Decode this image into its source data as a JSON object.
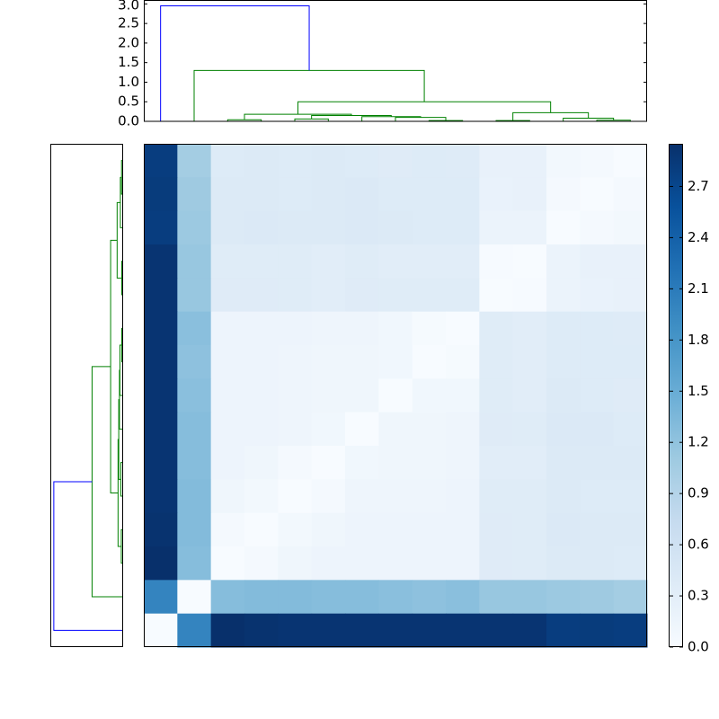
{
  "chart_data": {
    "type": "clustered-heatmap",
    "matrix": [
      [
        2.8,
        1.05,
        0.38,
        0.4,
        0.38,
        0.4,
        0.38,
        0.36,
        0.38,
        0.37,
        0.22,
        0.22,
        0.08,
        0.04,
        0.0
      ],
      [
        2.82,
        1.1,
        0.4,
        0.4,
        0.38,
        0.4,
        0.42,
        0.38,
        0.38,
        0.38,
        0.2,
        0.22,
        0.05,
        0.0,
        0.04
      ],
      [
        2.8,
        1.12,
        0.4,
        0.42,
        0.4,
        0.4,
        0.42,
        0.4,
        0.38,
        0.38,
        0.18,
        0.18,
        0.0,
        0.05,
        0.08
      ],
      [
        2.9,
        1.15,
        0.35,
        0.35,
        0.35,
        0.33,
        0.35,
        0.33,
        0.33,
        0.33,
        0.02,
        0.0,
        0.18,
        0.22,
        0.22
      ],
      [
        2.9,
        1.15,
        0.36,
        0.36,
        0.35,
        0.33,
        0.36,
        0.35,
        0.35,
        0.35,
        0.0,
        0.02,
        0.18,
        0.2,
        0.22
      ],
      [
        2.9,
        1.25,
        0.15,
        0.15,
        0.15,
        0.13,
        0.13,
        0.1,
        0.03,
        0.0,
        0.35,
        0.33,
        0.38,
        0.38,
        0.37
      ],
      [
        2.9,
        1.22,
        0.15,
        0.15,
        0.13,
        0.12,
        0.12,
        0.1,
        0.0,
        0.03,
        0.35,
        0.33,
        0.38,
        0.38,
        0.38
      ],
      [
        2.9,
        1.25,
        0.15,
        0.15,
        0.13,
        0.12,
        0.12,
        0.0,
        0.1,
        0.1,
        0.35,
        0.33,
        0.4,
        0.38,
        0.36
      ],
      [
        2.9,
        1.28,
        0.15,
        0.15,
        0.13,
        0.1,
        0.0,
        0.12,
        0.12,
        0.13,
        0.36,
        0.35,
        0.42,
        0.42,
        0.38
      ],
      [
        2.9,
        1.28,
        0.15,
        0.12,
        0.05,
        0.0,
        0.1,
        0.12,
        0.12,
        0.13,
        0.33,
        0.33,
        0.4,
        0.4,
        0.4
      ],
      [
        2.9,
        1.3,
        0.12,
        0.08,
        0.0,
        0.05,
        0.13,
        0.13,
        0.13,
        0.15,
        0.35,
        0.35,
        0.4,
        0.38,
        0.38
      ],
      [
        2.92,
        1.3,
        0.05,
        0.0,
        0.08,
        0.12,
        0.15,
        0.15,
        0.15,
        0.15,
        0.36,
        0.35,
        0.42,
        0.4,
        0.4
      ],
      [
        2.95,
        1.28,
        0.0,
        0.05,
        0.12,
        0.15,
        0.15,
        0.15,
        0.15,
        0.15,
        0.36,
        0.35,
        0.4,
        0.4,
        0.38
      ],
      [
        2.0,
        0.0,
        1.28,
        1.3,
        1.3,
        1.28,
        1.28,
        1.25,
        1.22,
        1.25,
        1.15,
        1.15,
        1.12,
        1.1,
        1.05
      ],
      [
        0.0,
        2.0,
        2.95,
        2.92,
        2.9,
        2.9,
        2.9,
        2.9,
        2.9,
        2.9,
        2.9,
        2.9,
        2.8,
        2.82,
        2.8
      ]
    ],
    "colormap": [
      "#f7fbff",
      "#deebf7",
      "#c6dbef",
      "#9ecae1",
      "#6baed6",
      "#4292c6",
      "#2171b5",
      "#08519c",
      "#08306b"
    ],
    "clim": [
      0,
      2.95
    ],
    "colorbar_ticks": [
      {
        "value": 0,
        "label": "0.0"
      },
      0.3,
      0.6,
      0.9,
      1.2,
      1.5,
      1.8,
      2.1,
      2.4,
      2.7
    ],
    "dendrogram": {
      "ylim": [
        0,
        3.1
      ],
      "yticks": [
        {
          "value": 0,
          "label": "0.0"
        },
        0.5,
        {
          "value": 1,
          "label": "1.0"
        },
        1.5,
        {
          "value": 2,
          "label": "2.0"
        },
        2.5,
        {
          "value": 3,
          "label": "3.0"
        }
      ],
      "links": [
        {
          "children": [
            2,
            3
          ],
          "height": 0.04,
          "color": "#008000"
        },
        {
          "children": [
            4,
            5
          ],
          "height": 0.06,
          "color": "#008000"
        },
        {
          "children": [
            8,
            9
          ],
          "height": 0.02,
          "color": "#008000"
        },
        {
          "children": [
            7,
            17
          ],
          "height": 0.1,
          "color": "#008000"
        },
        {
          "children": [
            6,
            18
          ],
          "height": 0.12,
          "color": "#008000"
        },
        {
          "children": [
            16,
            19
          ],
          "height": 0.15,
          "color": "#008000"
        },
        {
          "children": [
            15,
            20
          ],
          "height": 0.18,
          "color": "#008000"
        },
        {
          "children": [
            10,
            11
          ],
          "height": 0.02,
          "color": "#008000"
        },
        {
          "children": [
            13,
            14
          ],
          "height": 0.03,
          "color": "#008000"
        },
        {
          "children": [
            12,
            23
          ],
          "height": 0.08,
          "color": "#008000"
        },
        {
          "children": [
            22,
            24
          ],
          "height": 0.22,
          "color": "#008000"
        },
        {
          "children": [
            21,
            25
          ],
          "height": 0.5,
          "color": "#008000"
        },
        {
          "children": [
            1,
            26
          ],
          "height": 1.3,
          "color": "#008000"
        },
        {
          "children": [
            0,
            27
          ],
          "height": 2.95,
          "color": "#0000ff"
        }
      ]
    }
  }
}
